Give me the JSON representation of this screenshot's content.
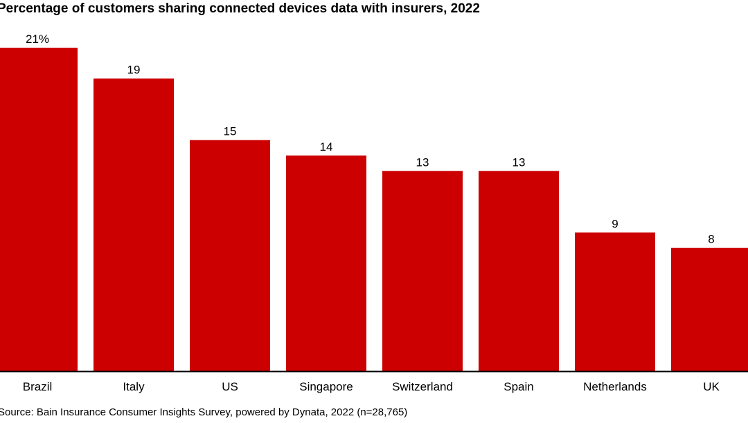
{
  "chart_data": {
    "type": "bar",
    "title": "Percentage of customers sharing connected devices data with insurers, 2022",
    "categories": [
      "Brazil",
      "Italy",
      "US",
      "Singapore",
      "Switzerland",
      "Spain",
      "Netherlands",
      "UK"
    ],
    "values": [
      21,
      19,
      15,
      14,
      13,
      13,
      9,
      8
    ],
    "data_labels": [
      "21%",
      "19",
      "15",
      "14",
      "13",
      "13",
      "9",
      "8"
    ],
    "xlabel": "",
    "ylabel": "",
    "ylim": [
      0,
      21
    ],
    "grid": false,
    "bar_color": "#cc0000",
    "source": "Source: Bain Insurance Consumer Insights Survey, powered by Dynata, 2022 (n=28,765)"
  }
}
